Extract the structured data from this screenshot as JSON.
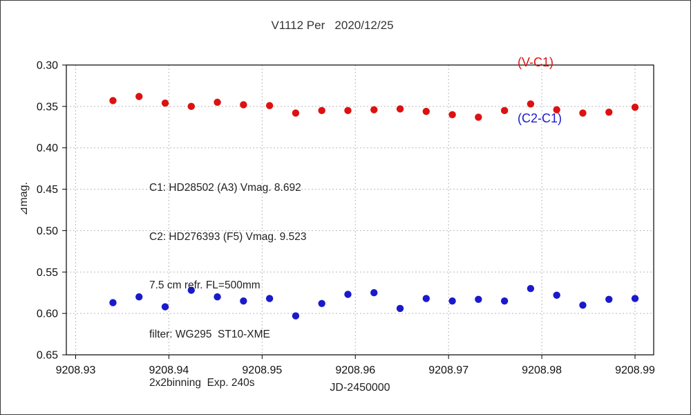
{
  "header": {
    "title": "V1112 Per   2020/12/25"
  },
  "legend": {
    "items": [
      {
        "label": "(V-C1)",
        "color": "#dd1111"
      },
      {
        "label": "(C2-C1)",
        "color": "#1a1acc"
      }
    ]
  },
  "annotation": {
    "lines": [
      "C1: HD28502 (A3) Vmag. 8.692",
      "C2: HD276393 (F5) Vmag. 9.523",
      "7.5 cm refr. FL=500mm",
      "filter: WG295  ST10-XME",
      "2x2binning  Exp. 240s"
    ]
  },
  "chart_data": {
    "type": "scatter",
    "title": "V1112 Per 2020/12/25",
    "xlabel": "JD-2450000",
    "ylabel": "⊿mag.",
    "xlim": [
      9208.929,
      9208.992
    ],
    "ylim": [
      0.65,
      0.3
    ],
    "y_inverted": true,
    "grid": "dotted",
    "grid_color": "#b8b8b8",
    "legend_position": "top-right",
    "marker_radius": 5.2,
    "x_ticks": [
      9208.93,
      9208.94,
      9208.95,
      9208.96,
      9208.97,
      9208.98,
      9208.99
    ],
    "y_ticks": [
      0.3,
      0.35,
      0.4,
      0.45,
      0.5,
      0.55,
      0.6,
      0.65
    ],
    "x": [
      9208.934,
      9208.9368,
      9208.9396,
      9208.9424,
      9208.9452,
      9208.948,
      9208.9508,
      9208.9536,
      9208.9564,
      9208.9592,
      9208.962,
      9208.9648,
      9208.9676,
      9208.9704,
      9208.9732,
      9208.976,
      9208.9788,
      9208.9816,
      9208.9844,
      9208.9872,
      9208.99
    ],
    "series": [
      {
        "name": "(V-C1)",
        "color": "#dd1111",
        "values": [
          0.343,
          0.338,
          0.346,
          0.35,
          0.345,
          0.348,
          0.349,
          0.358,
          0.355,
          0.355,
          0.354,
          0.353,
          0.356,
          0.36,
          0.363,
          0.355,
          0.347,
          0.354,
          0.358,
          0.357,
          0.351
        ]
      },
      {
        "name": "(C2-C1)",
        "color": "#1a1acc",
        "values": [
          0.587,
          0.58,
          0.592,
          0.572,
          0.58,
          0.585,
          0.582,
          0.603,
          0.588,
          0.577,
          0.575,
          0.594,
          0.582,
          0.585,
          0.583,
          0.585,
          0.57,
          0.578,
          0.59,
          0.583,
          0.582
        ]
      }
    ]
  }
}
